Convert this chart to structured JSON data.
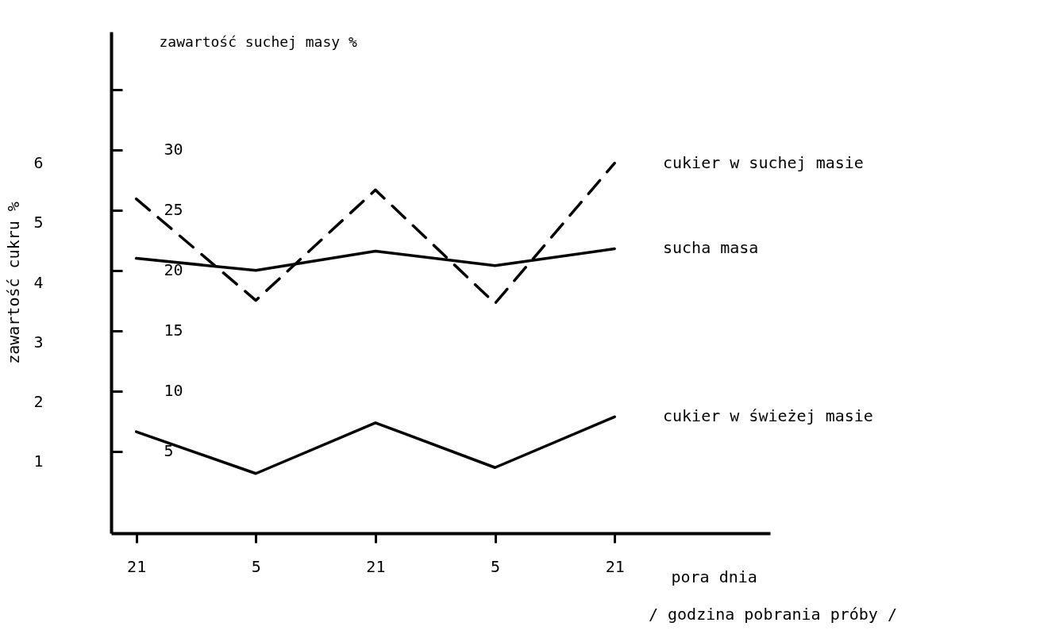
{
  "chart_data": {
    "type": "line",
    "categories": [
      "21",
      "5",
      "21",
      "5",
      "21"
    ],
    "xlabel": "pora dnia",
    "ylabel": "zawartość cukru %",
    "y2label": "zawartość suchej masy %",
    "ylim": [
      -0.2,
      8.2
    ],
    "yticks": [
      1,
      2,
      3,
      4,
      5,
      6
    ],
    "y2lim": [
      -1.8,
      39.8
    ],
    "y2ticks": [
      5,
      10,
      15,
      20,
      25,
      30,
      {
        "value": 35,
        "label": null
      }
    ],
    "grid": false,
    "annotations": [
      "/ godzina pobrania próby /"
    ],
    "series": [
      {
        "name": "cukier w suchej masie",
        "color": "#000000",
        "line_style": "dashed",
        "values": [
          5.4,
          3.7,
          5.55,
          3.65,
          6.0
        ]
      },
      {
        "name": "sucha masa",
        "color": "#000000",
        "axis": "y2",
        "line_style": "solid",
        "values": [
          21.0,
          20.0,
          21.6,
          20.4,
          21.8
        ]
      },
      {
        "name": "cukier w świeżej masie",
        "color": "#000000",
        "line_style": "solid",
        "values": [
          1.5,
          0.8,
          1.65,
          0.9,
          1.75
        ]
      }
    ]
  }
}
